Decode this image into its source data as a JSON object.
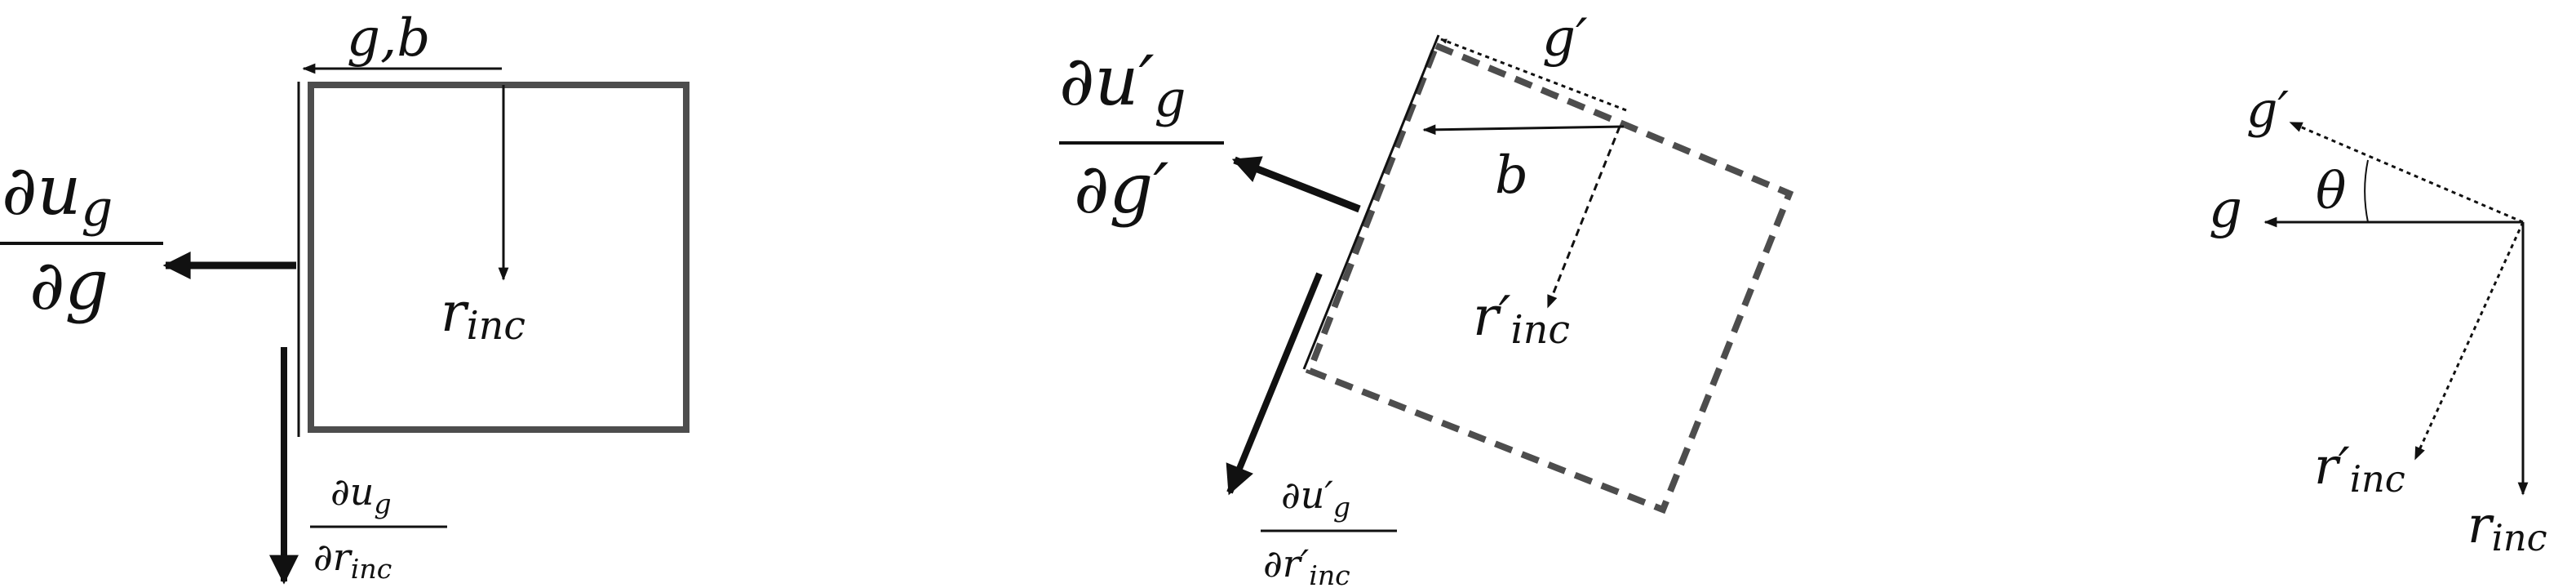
{
  "colors": {
    "ink": "#111111",
    "box": "#4d4d4d"
  },
  "left": {
    "top_label": {
      "base": "g,b"
    },
    "center_label": {
      "base": "r",
      "sub": "inc"
    },
    "big_fraction": {
      "num": "∂u",
      "num_sub": "g",
      "den": "∂g"
    },
    "small_fraction": {
      "num": "∂u",
      "num_sub": "g",
      "den": "∂r",
      "den_sub": "inc"
    }
  },
  "middle": {
    "gprime_label": {
      "base": "g′"
    },
    "b_label": {
      "base": "b"
    },
    "center_label": {
      "base": "r′",
      "sub": "inc"
    },
    "big_fraction": {
      "num": "∂u′",
      "num_sub": "g",
      "den": "∂g′"
    },
    "small_fraction": {
      "num": "∂u′",
      "num_sub": "g",
      "den": "∂r′",
      "den_sub": "inc"
    }
  },
  "right": {
    "gprime_label": {
      "base": "g′"
    },
    "theta_label": {
      "base": "θ"
    },
    "g_label": {
      "base": "g"
    },
    "rprime_label": {
      "base": "r′",
      "sub": "inc"
    },
    "r_label": {
      "base": "r",
      "sub": "inc"
    }
  }
}
